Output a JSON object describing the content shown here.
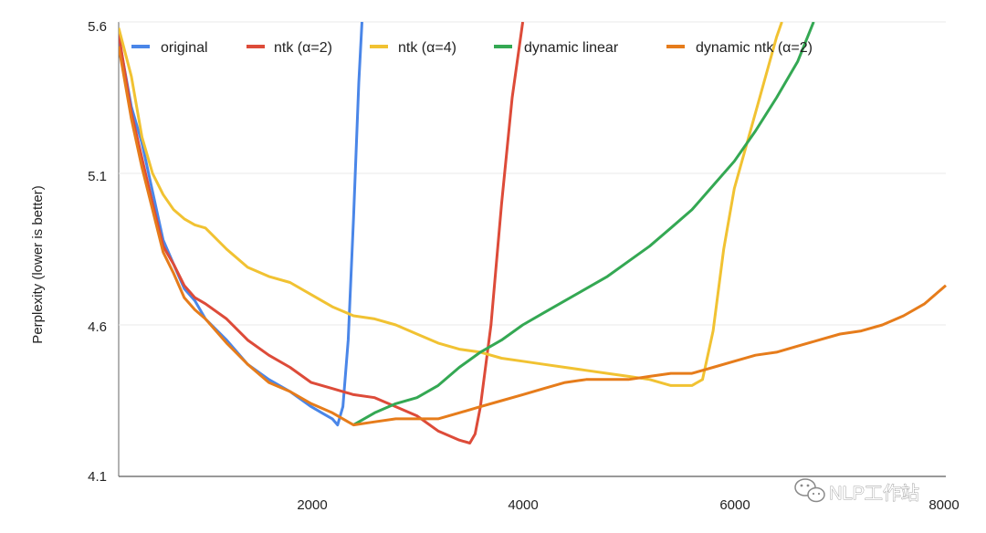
{
  "chart_data": {
    "type": "line",
    "title": "",
    "xlabel": "",
    "ylabel": "Perplexity (lower is better)",
    "xlim": [
      180,
      8000
    ],
    "ylim": [
      4.1,
      5.6
    ],
    "x_ticks": [
      2000,
      4000,
      6000,
      8000
    ],
    "x_tick_labels": [
      "2000",
      "4000",
      "6000",
      "8000"
    ],
    "y_ticks": [
      4.1,
      4.6,
      5.1,
      5.6
    ],
    "y_tick_labels": [
      "4.1",
      "4.6",
      "5.1",
      "5.6"
    ],
    "legend_position": "top",
    "series": [
      {
        "name": "original",
        "color": "#4a86e8",
        "points": [
          [
            180,
            5.55
          ],
          [
            300,
            5.32
          ],
          [
            400,
            5.2
          ],
          [
            500,
            5.04
          ],
          [
            600,
            4.88
          ],
          [
            700,
            4.8
          ],
          [
            800,
            4.72
          ],
          [
            900,
            4.68
          ],
          [
            1000,
            4.62
          ],
          [
            1200,
            4.55
          ],
          [
            1400,
            4.47
          ],
          [
            1600,
            4.42
          ],
          [
            1800,
            4.38
          ],
          [
            2000,
            4.33
          ],
          [
            2100,
            4.31
          ],
          [
            2200,
            4.29
          ],
          [
            2250,
            4.27
          ],
          [
            2300,
            4.33
          ],
          [
            2350,
            4.55
          ],
          [
            2400,
            4.95
          ],
          [
            2450,
            5.4
          ],
          [
            2480,
            5.6
          ]
        ]
      },
      {
        "name": "ntk (α=2)",
        "color": "#dd4b39",
        "points": [
          [
            180,
            5.56
          ],
          [
            300,
            5.3
          ],
          [
            400,
            5.15
          ],
          [
            500,
            5.0
          ],
          [
            600,
            4.86
          ],
          [
            700,
            4.8
          ],
          [
            800,
            4.73
          ],
          [
            900,
            4.69
          ],
          [
            1000,
            4.67
          ],
          [
            1200,
            4.62
          ],
          [
            1400,
            4.55
          ],
          [
            1600,
            4.5
          ],
          [
            1800,
            4.46
          ],
          [
            2000,
            4.41
          ],
          [
            2200,
            4.39
          ],
          [
            2400,
            4.37
          ],
          [
            2600,
            4.36
          ],
          [
            2800,
            4.33
          ],
          [
            3000,
            4.3
          ],
          [
            3200,
            4.25
          ],
          [
            3400,
            4.22
          ],
          [
            3500,
            4.21
          ],
          [
            3550,
            4.24
          ],
          [
            3600,
            4.33
          ],
          [
            3700,
            4.6
          ],
          [
            3800,
            5.0
          ],
          [
            3900,
            5.35
          ],
          [
            4000,
            5.6
          ]
        ]
      },
      {
        "name": "ntk (α=4)",
        "color": "#f1c232",
        "points": [
          [
            180,
            5.58
          ],
          [
            300,
            5.42
          ],
          [
            400,
            5.22
          ],
          [
            500,
            5.1
          ],
          [
            600,
            5.03
          ],
          [
            700,
            4.98
          ],
          [
            800,
            4.95
          ],
          [
            900,
            4.93
          ],
          [
            1000,
            4.92
          ],
          [
            1200,
            4.85
          ],
          [
            1400,
            4.79
          ],
          [
            1600,
            4.76
          ],
          [
            1800,
            4.74
          ],
          [
            2000,
            4.7
          ],
          [
            2200,
            4.66
          ],
          [
            2400,
            4.63
          ],
          [
            2600,
            4.62
          ],
          [
            2800,
            4.6
          ],
          [
            3000,
            4.57
          ],
          [
            3200,
            4.54
          ],
          [
            3400,
            4.52
          ],
          [
            3600,
            4.51
          ],
          [
            3800,
            4.49
          ],
          [
            4000,
            4.48
          ],
          [
            4200,
            4.47
          ],
          [
            4400,
            4.46
          ],
          [
            4600,
            4.45
          ],
          [
            4800,
            4.44
          ],
          [
            5000,
            4.43
          ],
          [
            5200,
            4.42
          ],
          [
            5400,
            4.4
          ],
          [
            5600,
            4.4
          ],
          [
            5700,
            4.42
          ],
          [
            5800,
            4.58
          ],
          [
            5900,
            4.85
          ],
          [
            6000,
            5.05
          ],
          [
            6200,
            5.3
          ],
          [
            6400,
            5.55
          ],
          [
            6450,
            5.6
          ]
        ]
      },
      {
        "name": "dynamic linear",
        "color": "#34a853",
        "points": [
          [
            2400,
            4.27
          ],
          [
            2600,
            4.31
          ],
          [
            2800,
            4.34
          ],
          [
            3000,
            4.36
          ],
          [
            3200,
            4.4
          ],
          [
            3400,
            4.46
          ],
          [
            3600,
            4.51
          ],
          [
            3800,
            4.55
          ],
          [
            4000,
            4.6
          ],
          [
            4200,
            4.64
          ],
          [
            4400,
            4.68
          ],
          [
            4600,
            4.72
          ],
          [
            4800,
            4.76
          ],
          [
            5000,
            4.81
          ],
          [
            5200,
            4.86
          ],
          [
            5400,
            4.92
          ],
          [
            5600,
            4.98
          ],
          [
            5800,
            5.06
          ],
          [
            6000,
            5.14
          ],
          [
            6200,
            5.24
          ],
          [
            6400,
            5.35
          ],
          [
            6600,
            5.47
          ],
          [
            6750,
            5.6
          ]
        ]
      },
      {
        "name": "dynamic ntk (α=2)",
        "color": "#e67c1b",
        "points": [
          [
            180,
            5.52
          ],
          [
            300,
            5.28
          ],
          [
            400,
            5.12
          ],
          [
            500,
            4.98
          ],
          [
            600,
            4.84
          ],
          [
            700,
            4.77
          ],
          [
            800,
            4.69
          ],
          [
            900,
            4.65
          ],
          [
            1000,
            4.62
          ],
          [
            1200,
            4.54
          ],
          [
            1400,
            4.47
          ],
          [
            1600,
            4.41
          ],
          [
            1800,
            4.38
          ],
          [
            2000,
            4.34
          ],
          [
            2200,
            4.31
          ],
          [
            2400,
            4.27
          ],
          [
            2600,
            4.28
          ],
          [
            2800,
            4.29
          ],
          [
            3000,
            4.29
          ],
          [
            3200,
            4.29
          ],
          [
            3400,
            4.31
          ],
          [
            3600,
            4.33
          ],
          [
            3800,
            4.35
          ],
          [
            4000,
            4.37
          ],
          [
            4200,
            4.39
          ],
          [
            4400,
            4.41
          ],
          [
            4600,
            4.42
          ],
          [
            4800,
            4.42
          ],
          [
            5000,
            4.42
          ],
          [
            5200,
            4.43
          ],
          [
            5400,
            4.44
          ],
          [
            5600,
            4.44
          ],
          [
            5800,
            4.46
          ],
          [
            6000,
            4.48
          ],
          [
            6200,
            4.5
          ],
          [
            6400,
            4.51
          ],
          [
            6600,
            4.53
          ],
          [
            6800,
            4.55
          ],
          [
            7000,
            4.57
          ],
          [
            7200,
            4.58
          ],
          [
            7400,
            4.6
          ],
          [
            7600,
            4.63
          ],
          [
            7800,
            4.67
          ],
          [
            7900,
            4.7
          ],
          [
            8000,
            4.73
          ]
        ]
      }
    ]
  },
  "watermark": {
    "text": "NLP工作站",
    "icon": "wechat-icon"
  }
}
